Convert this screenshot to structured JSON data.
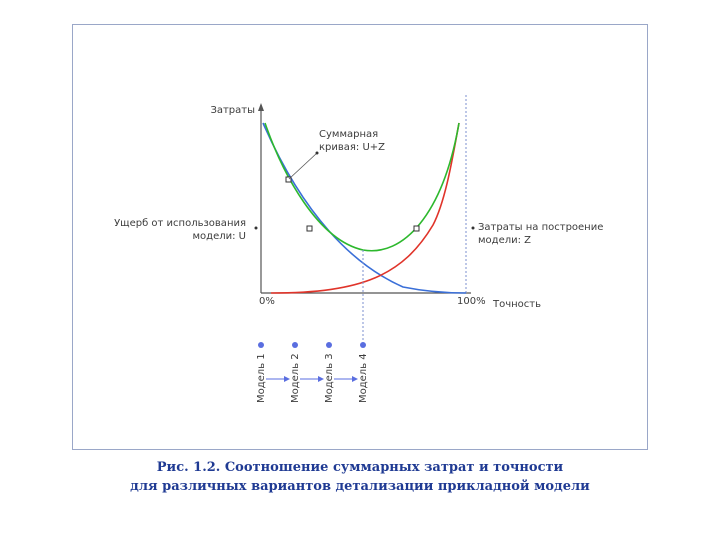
{
  "axes": {
    "y_label": "Затраты",
    "x_label": "Точность",
    "x_start": "0%",
    "x_end": "100%"
  },
  "annotations": {
    "total_line1": "Суммарная",
    "total_line2": "кривая: U+Z",
    "damage_line1": "Ущерб от использования",
    "damage_line2": "модели: U",
    "cost_line1": "Затраты на построение",
    "cost_line2": "модели: Z"
  },
  "models": [
    "Модель 1",
    "Модель 2",
    "Модель 3",
    "Модель 4"
  ],
  "caption": {
    "line1": "Рис. 1.2. Соотношение суммарных затрат и точности",
    "line2": "для различных вариантов детализации прикладной модели"
  },
  "colors": {
    "total_curve": "#2db82d",
    "damage_curve": "#3a6fd8",
    "cost_curve": "#e0342a",
    "axis": "#555555",
    "model_dot": "#5a6ee0",
    "caption": "#1f3a93"
  }
}
